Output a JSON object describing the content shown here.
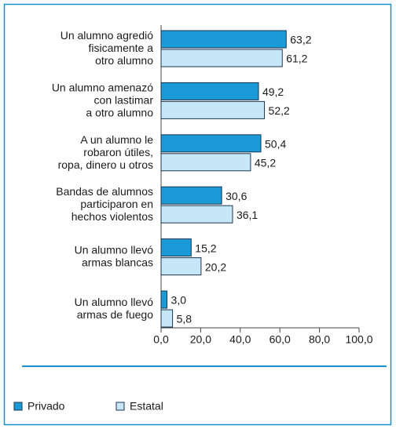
{
  "chart_data": {
    "type": "bar",
    "orientation": "horizontal",
    "categories": [
      "Un alumno agredió\nfisicamente a\notro alumno",
      "Un alumno amenazó\ncon lastimar\na otro alumno",
      "A un alumno le\nrobaron útiles,\nropa, dinero u otros",
      "Bandas de alumnos\nparticiparon en\nhechos violentos",
      "Un alumno llevó\narmas blancas",
      "Un alumno llevó\narmas de fuego"
    ],
    "series": [
      {
        "name": "Privado",
        "color": "#1a9ad6",
        "values": [
          63.2,
          49.2,
          50.4,
          30.6,
          15.2,
          3.0
        ],
        "value_labels": [
          "63,2",
          "49,2",
          "50,4",
          "30,6",
          "15,2",
          "3,0"
        ]
      },
      {
        "name": "Estatal",
        "color": "#c6e7f8",
        "values": [
          61.2,
          52.2,
          45.2,
          36.1,
          20.2,
          5.8
        ],
        "value_labels": [
          "61,2",
          "52,2",
          "45,2",
          "36,1",
          "20,2",
          "5,8"
        ]
      }
    ],
    "xlim": [
      0,
      100
    ],
    "xticks": [
      {
        "value": 0,
        "label": "0,0"
      },
      {
        "value": 20,
        "label": "20,0"
      },
      {
        "value": 40,
        "label": "40,0"
      },
      {
        "value": 60,
        "label": "60,0"
      },
      {
        "value": 80,
        "label": "80,0"
      },
      {
        "value": 100,
        "label": "100,0"
      }
    ],
    "legend": "bottom-left"
  }
}
